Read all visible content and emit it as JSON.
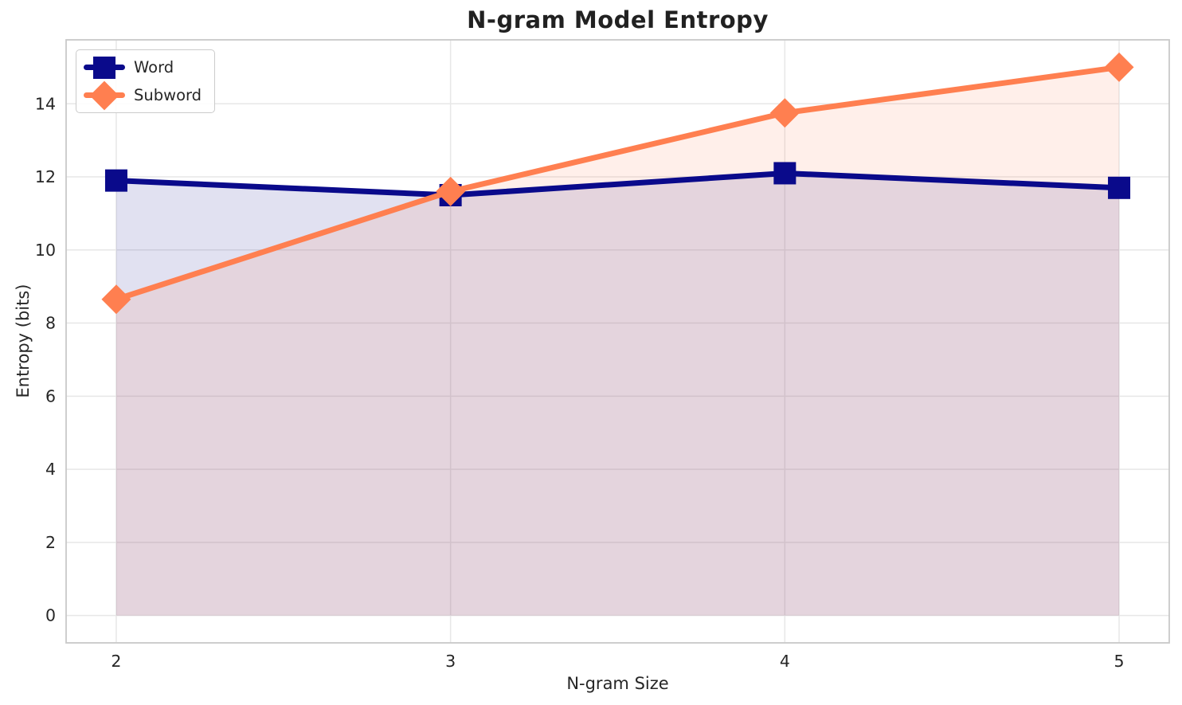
{
  "chart_data": {
    "type": "line",
    "title": "N-gram Model Entropy",
    "xlabel": "N-gram Size",
    "ylabel": "Entropy (bits)",
    "x": [
      2,
      3,
      4,
      5
    ],
    "series": [
      {
        "name": "Word",
        "values": [
          11.9,
          11.5,
          12.1,
          11.7
        ],
        "color": "#0a0a8b",
        "marker": "square"
      },
      {
        "name": "Subword",
        "values": [
          8.65,
          11.6,
          13.75,
          15.0
        ],
        "color": "#ff7f50",
        "marker": "diamond"
      }
    ],
    "xticks": [
      2,
      3,
      4,
      5
    ],
    "yticks": [
      0,
      2,
      4,
      6,
      8,
      10,
      12,
      14
    ],
    "xlim": [
      1.85,
      5.15
    ],
    "ylim": [
      -0.75,
      15.75
    ],
    "grid": true,
    "fill_to_zero": true,
    "fill_alpha": 0.12,
    "legend_position": "upper left",
    "colors": {
      "background": "#ffffff",
      "grid": "#e7e7e7",
      "spine": "#c9c9c9",
      "text": "#262626"
    }
  }
}
